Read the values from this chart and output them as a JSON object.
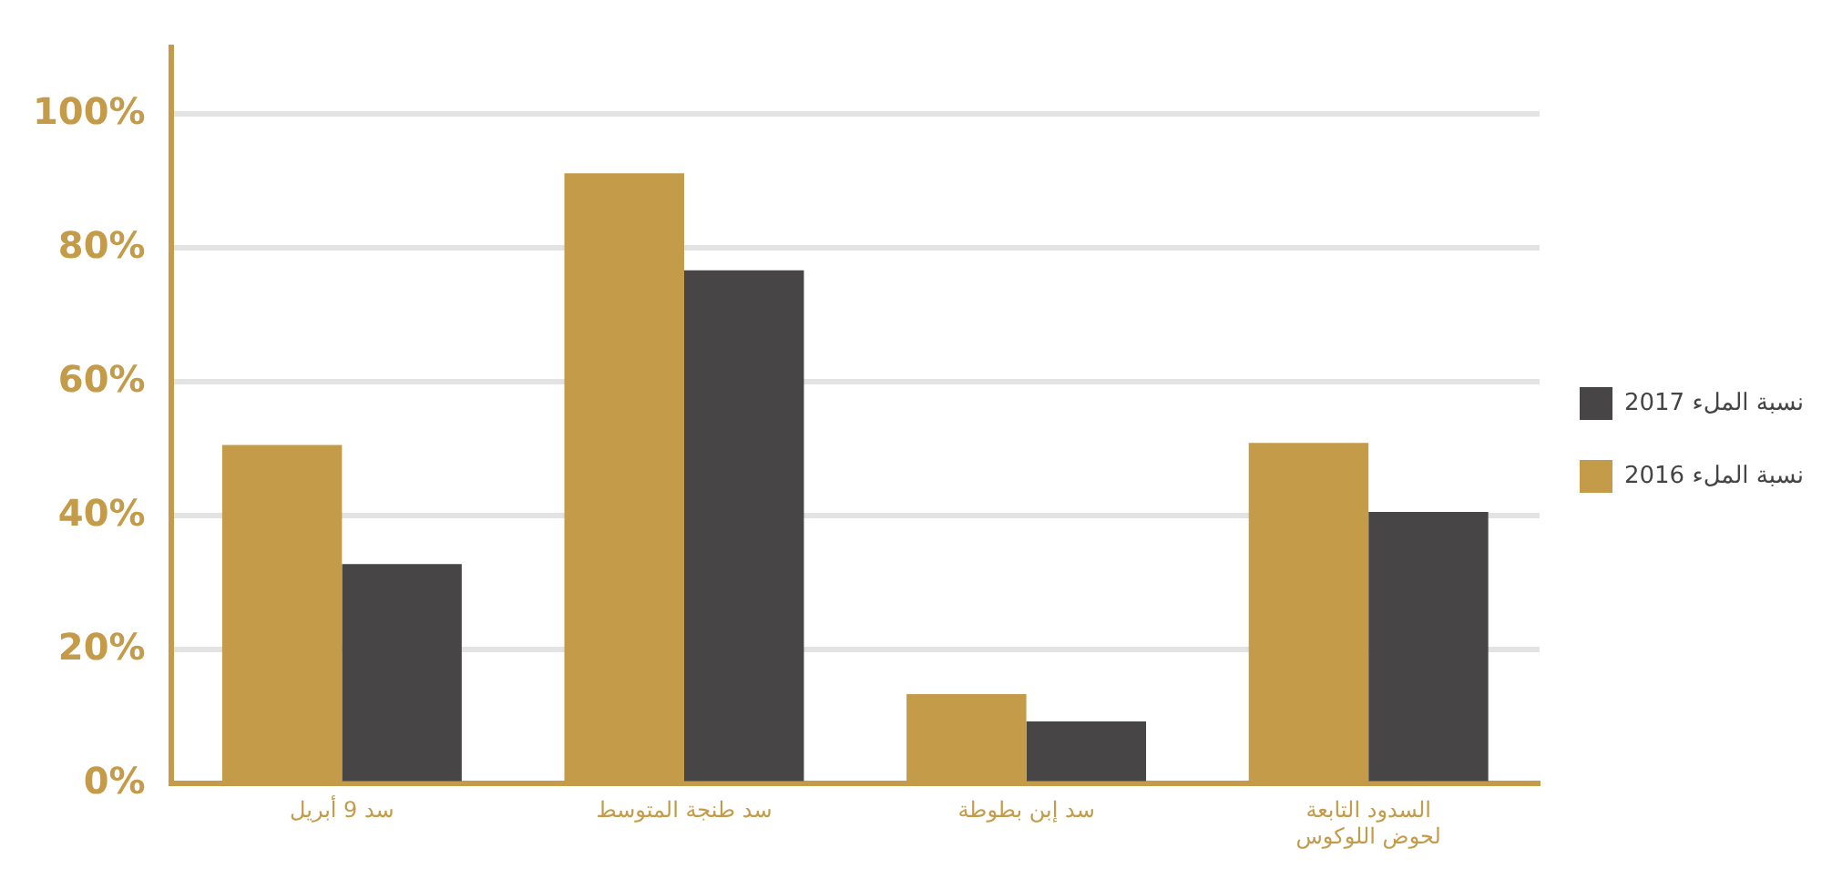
{
  "chart_data": {
    "type": "bar",
    "categories": [
      "سد 9 أبريل",
      "سد طنجة المتوسط",
      "سد إبن بطوطة",
      "السدود التابعة\nلحوض اللوكوس"
    ],
    "series": [
      {
        "name": "نسبة الملء 2016",
        "color": "#c49b48",
        "values": [
          50.6,
          91.2,
          13.4,
          50.9
        ]
      },
      {
        "name": "نسبة الملء 2017",
        "color": "#474546",
        "values": [
          32.8,
          76.7,
          9.3,
          40.6
        ]
      }
    ],
    "ylim": [
      0,
      110
    ],
    "yticks": [
      {
        "value": 0,
        "label": "0%"
      },
      {
        "value": 20,
        "label": "20%"
      },
      {
        "value": 40,
        "label": "40%"
      },
      {
        "value": 60,
        "label": "60%"
      },
      {
        "value": 80,
        "label": "80%"
      },
      {
        "value": 100,
        "label": "100%"
      }
    ],
    "grid": "y",
    "legend": "right"
  }
}
